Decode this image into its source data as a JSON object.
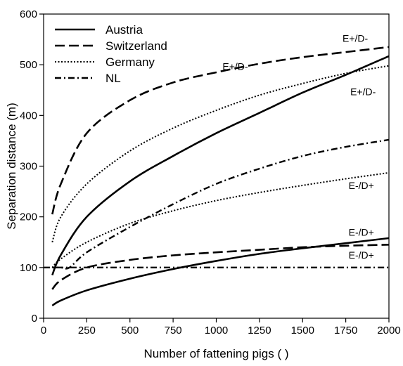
{
  "chart_data": {
    "type": "line",
    "xlabel": "Number of fattening pigs  ( )",
    "ylabel": "Separation distance (m)",
    "xlim": [
      0,
      2000
    ],
    "ylim": [
      0,
      600
    ],
    "xticks": [
      0,
      250,
      500,
      750,
      1000,
      1250,
      1500,
      1750,
      2000
    ],
    "yticks": [
      0,
      100,
      200,
      300,
      400,
      500,
      600
    ],
    "grid": false,
    "legend": "top-left",
    "legend_entries": [
      "Austria",
      "Switzerland",
      "Germany",
      "NL"
    ],
    "series": [
      {
        "name": "Austria",
        "style": "solid",
        "scenario": "E+/D-",
        "x": [
          50,
          100,
          250,
          500,
          750,
          1000,
          1250,
          1500,
          1750,
          2000
        ],
        "y": [
          85,
          125,
          200,
          270,
          320,
          365,
          405,
          445,
          480,
          517
        ]
      },
      {
        "name": "Austria",
        "style": "solid",
        "scenario": "E-/D+",
        "x": [
          50,
          100,
          250,
          500,
          750,
          1000,
          1250,
          1500,
          1750,
          2000
        ],
        "y": [
          25,
          35,
          55,
          78,
          97,
          113,
          127,
          138,
          148,
          158
        ]
      },
      {
        "name": "Switzerland",
        "style": "dashed",
        "scenario": "E+/D-",
        "x": [
          50,
          100,
          250,
          500,
          750,
          1000,
          1250,
          1500,
          1750,
          2000
        ],
        "y": [
          205,
          265,
          365,
          430,
          465,
          485,
          502,
          515,
          525,
          535
        ]
      },
      {
        "name": "Switzerland",
        "style": "dashed",
        "scenario": "E-/D+",
        "x": [
          50,
          100,
          250,
          500,
          750,
          1000,
          1250,
          1500,
          1750,
          2000
        ],
        "y": [
          57,
          75,
          100,
          115,
          124,
          130,
          135,
          140,
          143,
          145
        ]
      },
      {
        "name": "Germany",
        "style": "dotted",
        "scenario": "E+/D-",
        "x": [
          50,
          100,
          250,
          500,
          750,
          1000,
          1250,
          1500,
          1750,
          2000
        ],
        "y": [
          150,
          200,
          265,
          330,
          375,
          410,
          440,
          463,
          483,
          498
        ]
      },
      {
        "name": "Germany",
        "style": "dotted",
        "scenario": "E-/D+",
        "x": [
          50,
          100,
          250,
          500,
          750,
          1000,
          1250,
          1500,
          1750,
          2000
        ],
        "y": [
          100,
          117,
          150,
          187,
          212,
          232,
          248,
          262,
          275,
          287
        ]
      },
      {
        "name": "NL",
        "style": "dashdot",
        "scenario": "E+/D-",
        "x": [
          50,
          100,
          150,
          250,
          500,
          750,
          1000,
          1250,
          1500,
          1750,
          2000
        ],
        "y": [
          100,
          100,
          100,
          130,
          180,
          225,
          265,
          295,
          320,
          338,
          352
        ]
      },
      {
        "name": "NL",
        "style": "dashdot",
        "scenario": "E-/D+",
        "x": [
          0,
          150,
          500,
          750,
          1000,
          1250,
          1500,
          1750,
          2000
        ],
        "y": [
          100,
          100,
          100,
          100,
          100,
          100,
          100,
          100,
          100
        ]
      }
    ],
    "annotations": [
      {
        "text": "E+/D-",
        "x": 1805,
        "y": 545
      },
      {
        "text": "E+/D-",
        "x": 1110,
        "y": 490
      },
      {
        "text": "E+/D-",
        "x": 1850,
        "y": 440
      },
      {
        "text": "E-/D+",
        "x": 1840,
        "y": 255
      },
      {
        "text": "E-/D+",
        "x": 1840,
        "y": 163
      },
      {
        "text": "E-/D+",
        "x": 1840,
        "y": 118
      }
    ]
  }
}
